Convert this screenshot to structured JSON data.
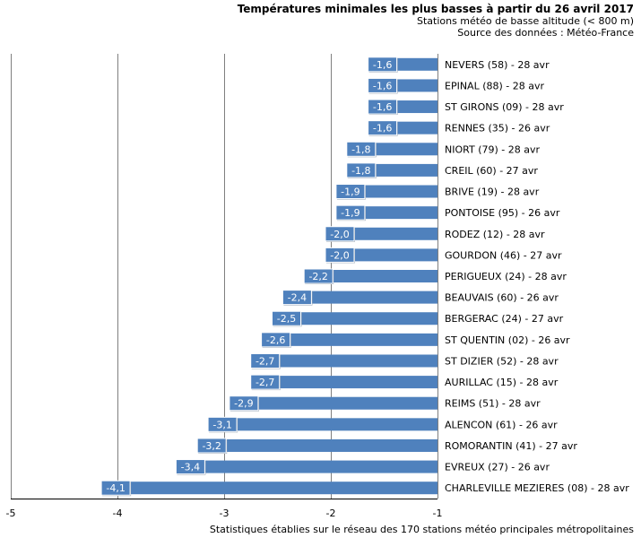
{
  "chart_data": {
    "type": "bar",
    "orientation": "horizontal",
    "title": "Températures minimales les plus basses à partir du 26 avril 2017",
    "subtitle": "Stations météo de basse altitude (< 800 m)",
    "source": "Source des données : Météo-France",
    "footnote": "Statistiques établies sur le réseau des 170 stations météo principales métropolitaines",
    "categories": [
      "NEVERS (58) - 28 avr",
      "EPINAL (88) - 28 avr",
      "ST GIRONS (09) - 28 avr",
      "RENNES (35) - 26 avr",
      "NIORT (79) - 28 avr",
      "CREIL (60) - 27 avr",
      "BRIVE (19) - 28 avr",
      "PONTOISE (95) - 26 avr",
      "RODEZ (12) - 28 avr",
      "GOURDON (46) - 27 avr",
      "PERIGUEUX (24) - 28 avr",
      "BEAUVAIS (60) - 26 avr",
      "BERGERAC (24) - 27 avr",
      "ST QUENTIN (02) - 26 avr",
      "ST DIZIER (52) - 28 avr",
      "AURILLAC (15) - 28 avr",
      "REIMS (51) - 28 avr",
      "ALENCON (61) - 26 avr",
      "ROMORANTIN (41) - 27 avr",
      "EVREUX (27) - 26 avr",
      "CHARLEVILLE MEZIERES (08) - 28 avr"
    ],
    "values": [
      -1.6,
      -1.6,
      -1.6,
      -1.6,
      -1.8,
      -1.8,
      -1.9,
      -1.9,
      -2.0,
      -2.0,
      -2.2,
      -2.4,
      -2.5,
      -2.6,
      -2.7,
      -2.7,
      -2.9,
      -3.1,
      -3.2,
      -3.4,
      -4.1
    ],
    "value_labels": [
      "-1,6",
      "-1,6",
      "-1,6",
      "-1,6",
      "-1,8",
      "-1,8",
      "-1,9",
      "-1,9",
      "-2,0",
      "-2,0",
      "-2,2",
      "-2,4",
      "-2,5",
      "-2,6",
      "-2,7",
      "-2,7",
      "-2,9",
      "-3,1",
      "-3,2",
      "-3,4",
      "-4,1"
    ],
    "xlim": [
      -5,
      -1
    ],
    "xticks": [
      -5,
      -4,
      -3,
      -2,
      -1
    ],
    "xtick_labels": [
      "-5",
      "-4",
      "-3",
      "-2",
      "-1"
    ],
    "grid": true,
    "colors": {
      "bar": "#4f81bd",
      "label_bg": "#4f81bd",
      "label_text": "#ffffff",
      "grid": "#7f7f7f",
      "axis": "#000000"
    }
  }
}
